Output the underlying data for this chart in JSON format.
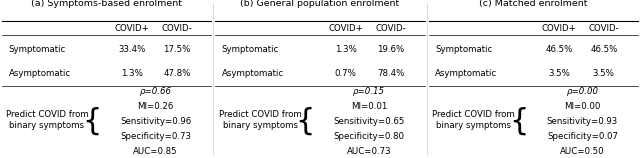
{
  "panels": [
    {
      "title": "(a) Symptoms-based enrolment",
      "col1_header": "COVID+",
      "col2_header": "COVID-",
      "row1_label": "Symptomatic",
      "row2_label": "Asymptomatic",
      "row1_col1": "33.4%",
      "row1_col2": "17.5%",
      "row2_col1": "1.3%",
      "row2_col2": "47.8%",
      "predict_label": "Predict COVID from\nbinary symptoms",
      "stats": [
        "ρ=0.66",
        "MI=0.26",
        "Sensitivity=0.96",
        "Specificity=0.73",
        "AUC=0.85"
      ]
    },
    {
      "title": "(b) General population enrolment",
      "col1_header": "COVID+",
      "col2_header": "COVID-",
      "row1_label": "Symptomatic",
      "row2_label": "Asymptomatic",
      "row1_col1": "1.3%",
      "row1_col2": "19.6%",
      "row2_col1": "0.7%",
      "row2_col2": "78.4%",
      "predict_label": "Predict COVID from\nbinary symptoms",
      "stats": [
        "ρ=0.15",
        "MI=0.01",
        "Sensitivity=0.65",
        "Specificity=0.80",
        "AUC=0.73"
      ]
    },
    {
      "title": "(c) Matched enrolment",
      "col1_header": "COVID+",
      "col2_header": "COVID-",
      "row1_label": "Symptomatic",
      "row2_label": "Asymptomatic",
      "row1_col1": "46.5%",
      "row1_col2": "46.5%",
      "row2_col1": "3.5%",
      "row2_col2": "3.5%",
      "predict_label": "Predict COVID from\nbinary symptoms",
      "stats": [
        "ρ=0.00",
        "MI=0.00",
        "Sensitivity=0.93",
        "Specificity=0.07",
        "AUC=0.50"
      ]
    }
  ],
  "fs": 6.2,
  "tfs": 6.8,
  "bold_fs": 6.2
}
